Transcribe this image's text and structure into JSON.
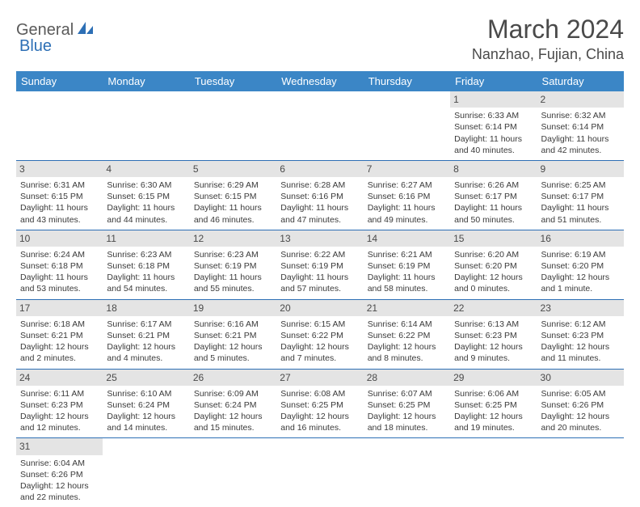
{
  "logo": {
    "part1": "General",
    "part2": "Blue"
  },
  "title": "March 2024",
  "location": "Nanzhao, Fujian, China",
  "colors": {
    "header_bg": "#3b86c6",
    "header_text": "#ffffff",
    "border": "#2d6fb5",
    "daynum_bg": "#e4e4e4",
    "text": "#3a3a3a",
    "logo_gray": "#5a5a5a",
    "logo_blue": "#2d6fb5"
  },
  "weekdays": [
    "Sunday",
    "Monday",
    "Tuesday",
    "Wednesday",
    "Thursday",
    "Friday",
    "Saturday"
  ],
  "cells": [
    {
      "empty": true
    },
    {
      "empty": true
    },
    {
      "empty": true
    },
    {
      "empty": true
    },
    {
      "empty": true
    },
    {
      "day": "1",
      "sunrise": "Sunrise: 6:33 AM",
      "sunset": "Sunset: 6:14 PM",
      "daylight1": "Daylight: 11 hours",
      "daylight2": "and 40 minutes."
    },
    {
      "day": "2",
      "sunrise": "Sunrise: 6:32 AM",
      "sunset": "Sunset: 6:14 PM",
      "daylight1": "Daylight: 11 hours",
      "daylight2": "and 42 minutes."
    },
    {
      "day": "3",
      "sunrise": "Sunrise: 6:31 AM",
      "sunset": "Sunset: 6:15 PM",
      "daylight1": "Daylight: 11 hours",
      "daylight2": "and 43 minutes."
    },
    {
      "day": "4",
      "sunrise": "Sunrise: 6:30 AM",
      "sunset": "Sunset: 6:15 PM",
      "daylight1": "Daylight: 11 hours",
      "daylight2": "and 44 minutes."
    },
    {
      "day": "5",
      "sunrise": "Sunrise: 6:29 AM",
      "sunset": "Sunset: 6:15 PM",
      "daylight1": "Daylight: 11 hours",
      "daylight2": "and 46 minutes."
    },
    {
      "day": "6",
      "sunrise": "Sunrise: 6:28 AM",
      "sunset": "Sunset: 6:16 PM",
      "daylight1": "Daylight: 11 hours",
      "daylight2": "and 47 minutes."
    },
    {
      "day": "7",
      "sunrise": "Sunrise: 6:27 AM",
      "sunset": "Sunset: 6:16 PM",
      "daylight1": "Daylight: 11 hours",
      "daylight2": "and 49 minutes."
    },
    {
      "day": "8",
      "sunrise": "Sunrise: 6:26 AM",
      "sunset": "Sunset: 6:17 PM",
      "daylight1": "Daylight: 11 hours",
      "daylight2": "and 50 minutes."
    },
    {
      "day": "9",
      "sunrise": "Sunrise: 6:25 AM",
      "sunset": "Sunset: 6:17 PM",
      "daylight1": "Daylight: 11 hours",
      "daylight2": "and 51 minutes."
    },
    {
      "day": "10",
      "sunrise": "Sunrise: 6:24 AM",
      "sunset": "Sunset: 6:18 PM",
      "daylight1": "Daylight: 11 hours",
      "daylight2": "and 53 minutes."
    },
    {
      "day": "11",
      "sunrise": "Sunrise: 6:23 AM",
      "sunset": "Sunset: 6:18 PM",
      "daylight1": "Daylight: 11 hours",
      "daylight2": "and 54 minutes."
    },
    {
      "day": "12",
      "sunrise": "Sunrise: 6:23 AM",
      "sunset": "Sunset: 6:19 PM",
      "daylight1": "Daylight: 11 hours",
      "daylight2": "and 55 minutes."
    },
    {
      "day": "13",
      "sunrise": "Sunrise: 6:22 AM",
      "sunset": "Sunset: 6:19 PM",
      "daylight1": "Daylight: 11 hours",
      "daylight2": "and 57 minutes."
    },
    {
      "day": "14",
      "sunrise": "Sunrise: 6:21 AM",
      "sunset": "Sunset: 6:19 PM",
      "daylight1": "Daylight: 11 hours",
      "daylight2": "and 58 minutes."
    },
    {
      "day": "15",
      "sunrise": "Sunrise: 6:20 AM",
      "sunset": "Sunset: 6:20 PM",
      "daylight1": "Daylight: 12 hours",
      "daylight2": "and 0 minutes."
    },
    {
      "day": "16",
      "sunrise": "Sunrise: 6:19 AM",
      "sunset": "Sunset: 6:20 PM",
      "daylight1": "Daylight: 12 hours",
      "daylight2": "and 1 minute."
    },
    {
      "day": "17",
      "sunrise": "Sunrise: 6:18 AM",
      "sunset": "Sunset: 6:21 PM",
      "daylight1": "Daylight: 12 hours",
      "daylight2": "and 2 minutes."
    },
    {
      "day": "18",
      "sunrise": "Sunrise: 6:17 AM",
      "sunset": "Sunset: 6:21 PM",
      "daylight1": "Daylight: 12 hours",
      "daylight2": "and 4 minutes."
    },
    {
      "day": "19",
      "sunrise": "Sunrise: 6:16 AM",
      "sunset": "Sunset: 6:21 PM",
      "daylight1": "Daylight: 12 hours",
      "daylight2": "and 5 minutes."
    },
    {
      "day": "20",
      "sunrise": "Sunrise: 6:15 AM",
      "sunset": "Sunset: 6:22 PM",
      "daylight1": "Daylight: 12 hours",
      "daylight2": "and 7 minutes."
    },
    {
      "day": "21",
      "sunrise": "Sunrise: 6:14 AM",
      "sunset": "Sunset: 6:22 PM",
      "daylight1": "Daylight: 12 hours",
      "daylight2": "and 8 minutes."
    },
    {
      "day": "22",
      "sunrise": "Sunrise: 6:13 AM",
      "sunset": "Sunset: 6:23 PM",
      "daylight1": "Daylight: 12 hours",
      "daylight2": "and 9 minutes."
    },
    {
      "day": "23",
      "sunrise": "Sunrise: 6:12 AM",
      "sunset": "Sunset: 6:23 PM",
      "daylight1": "Daylight: 12 hours",
      "daylight2": "and 11 minutes."
    },
    {
      "day": "24",
      "sunrise": "Sunrise: 6:11 AM",
      "sunset": "Sunset: 6:23 PM",
      "daylight1": "Daylight: 12 hours",
      "daylight2": "and 12 minutes."
    },
    {
      "day": "25",
      "sunrise": "Sunrise: 6:10 AM",
      "sunset": "Sunset: 6:24 PM",
      "daylight1": "Daylight: 12 hours",
      "daylight2": "and 14 minutes."
    },
    {
      "day": "26",
      "sunrise": "Sunrise: 6:09 AM",
      "sunset": "Sunset: 6:24 PM",
      "daylight1": "Daylight: 12 hours",
      "daylight2": "and 15 minutes."
    },
    {
      "day": "27",
      "sunrise": "Sunrise: 6:08 AM",
      "sunset": "Sunset: 6:25 PM",
      "daylight1": "Daylight: 12 hours",
      "daylight2": "and 16 minutes."
    },
    {
      "day": "28",
      "sunrise": "Sunrise: 6:07 AM",
      "sunset": "Sunset: 6:25 PM",
      "daylight1": "Daylight: 12 hours",
      "daylight2": "and 18 minutes."
    },
    {
      "day": "29",
      "sunrise": "Sunrise: 6:06 AM",
      "sunset": "Sunset: 6:25 PM",
      "daylight1": "Daylight: 12 hours",
      "daylight2": "and 19 minutes."
    },
    {
      "day": "30",
      "sunrise": "Sunrise: 6:05 AM",
      "sunset": "Sunset: 6:26 PM",
      "daylight1": "Daylight: 12 hours",
      "daylight2": "and 20 minutes."
    },
    {
      "day": "31",
      "sunrise": "Sunrise: 6:04 AM",
      "sunset": "Sunset: 6:26 PM",
      "daylight1": "Daylight: 12 hours",
      "daylight2": "and 22 minutes."
    },
    {
      "empty": true
    },
    {
      "empty": true
    },
    {
      "empty": true
    },
    {
      "empty": true
    },
    {
      "empty": true
    },
    {
      "empty": true
    }
  ]
}
